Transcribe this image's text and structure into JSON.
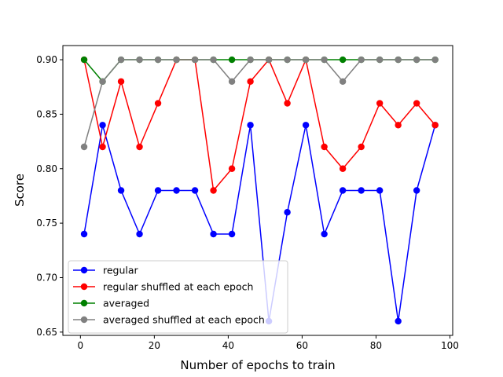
{
  "chart_data": {
    "type": "line",
    "title": "",
    "xlabel": "Number of epochs to train",
    "ylabel": "Score",
    "xlim": [
      -4.75,
      100.75
    ],
    "ylim": [
      0.647,
      0.913
    ],
    "xticks": [
      0,
      20,
      40,
      60,
      80,
      100
    ],
    "yticks": [
      0.65,
      0.7,
      0.75,
      0.8,
      0.85,
      0.9
    ],
    "ytick_labels": [
      "0.65",
      "0.70",
      "0.75",
      "0.80",
      "0.85",
      "0.90"
    ],
    "grid": false,
    "legend_position": "bottom-left",
    "x": [
      1,
      6,
      11,
      16,
      21,
      26,
      31,
      36,
      41,
      46,
      51,
      56,
      61,
      66,
      71,
      76,
      81,
      86,
      91,
      96
    ],
    "series": [
      {
        "name": "regular",
        "color": "#0000ff",
        "values": [
          0.74,
          0.84,
          0.78,
          0.74,
          0.78,
          0.78,
          0.78,
          0.74,
          0.74,
          0.84,
          0.66,
          0.76,
          0.84,
          0.74,
          0.78,
          0.78,
          0.78,
          0.66,
          0.78,
          0.84
        ]
      },
      {
        "name": "regular shuffled at each epoch",
        "color": "#ff0000",
        "values": [
          0.9,
          0.82,
          0.88,
          0.82,
          0.86,
          0.9,
          0.9,
          0.78,
          0.8,
          0.88,
          0.9,
          0.86,
          0.9,
          0.82,
          0.8,
          0.82,
          0.86,
          0.84,
          0.86,
          0.84
        ]
      },
      {
        "name": "averaged",
        "color": "#008000",
        "values": [
          0.9,
          0.88,
          0.9,
          0.9,
          0.9,
          0.9,
          0.9,
          0.9,
          0.9,
          0.9,
          0.9,
          0.9,
          0.9,
          0.9,
          0.9,
          0.9,
          0.9,
          0.9,
          0.9,
          0.9
        ]
      },
      {
        "name": "averaged shuffled at each epoch",
        "color": "#808080",
        "values": [
          0.82,
          0.88,
          0.9,
          0.9,
          0.9,
          0.9,
          0.9,
          0.9,
          0.88,
          0.9,
          0.9,
          0.9,
          0.9,
          0.9,
          0.88,
          0.9,
          0.9,
          0.9,
          0.9,
          0.9
        ]
      }
    ]
  }
}
